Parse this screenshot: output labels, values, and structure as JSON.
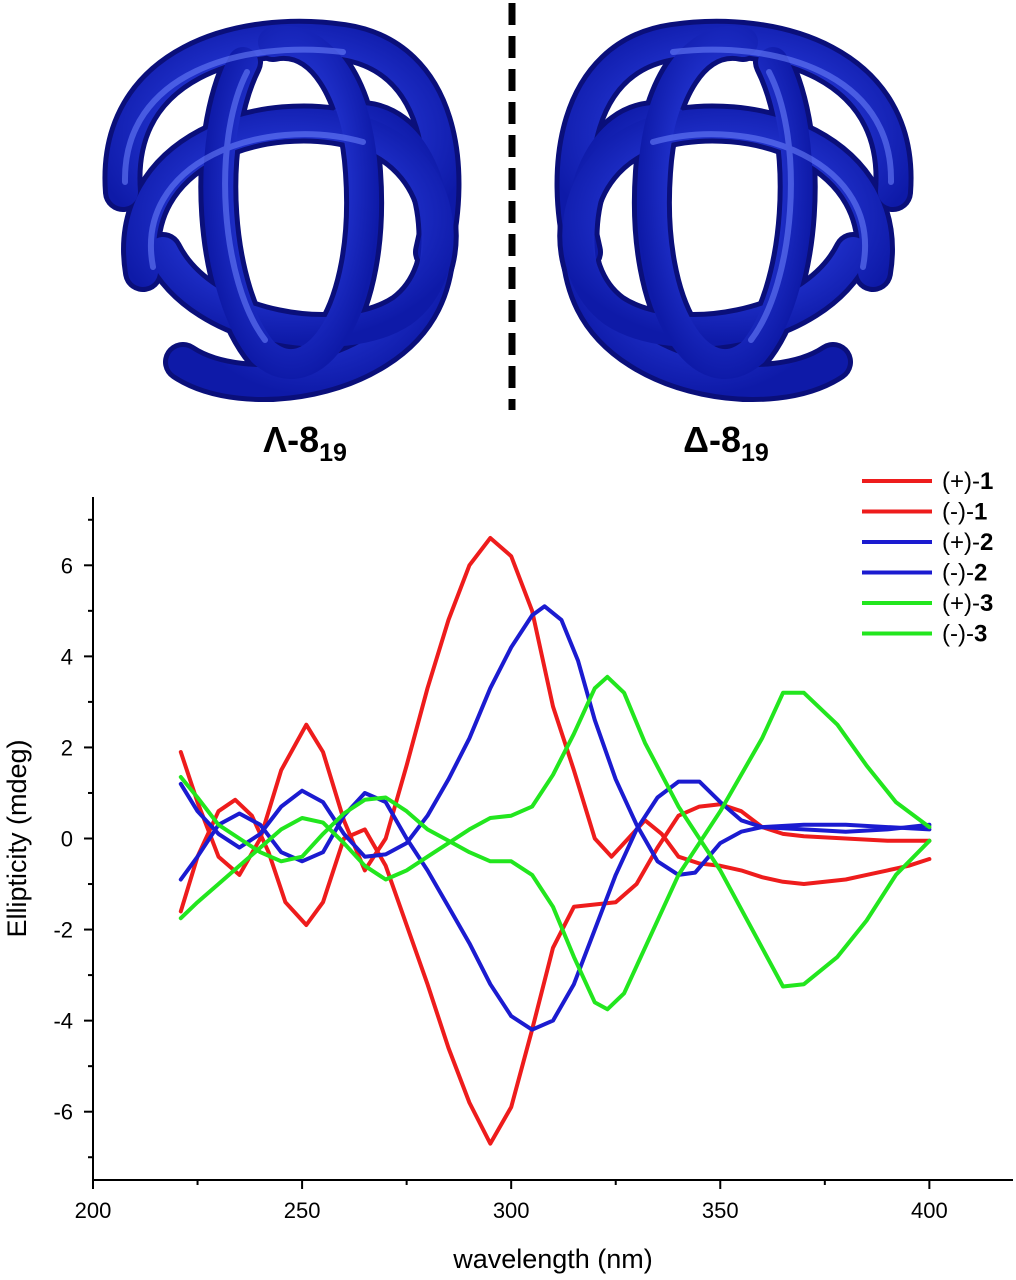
{
  "knots": {
    "left": {
      "prefix": "Λ-8",
      "sub": "19"
    },
    "right": {
      "prefix": "Δ-8",
      "sub": "19"
    },
    "color": "#1f2fd6"
  },
  "chart_data": {
    "type": "line",
    "xlabel": "wavelength (nm)",
    "ylabel": "Ellipticity (mdeg)",
    "xlim": [
      200,
      420
    ],
    "ylim": [
      -7.5,
      7.5
    ],
    "x_ticks": [
      "200",
      "250",
      "300",
      "350",
      "400"
    ],
    "y_ticks": [
      "-6",
      "-4",
      "-2",
      "0",
      "2",
      "4",
      "6"
    ],
    "legend_position": "top-right",
    "series": [
      {
        "name": "(+)-1",
        "label_prefix": "(+)-",
        "label_num": "1",
        "color": "#ee1c1c",
        "points": [
          [
            221,
            1.9
          ],
          [
            225,
            0.8
          ],
          [
            230,
            -0.4
          ],
          [
            235,
            -0.8
          ],
          [
            240,
            0.0
          ],
          [
            245,
            1.5
          ],
          [
            251,
            2.5
          ],
          [
            255,
            1.9
          ],
          [
            260,
            0.4
          ],
          [
            265,
            -0.7
          ],
          [
            270,
            0.0
          ],
          [
            275,
            1.6
          ],
          [
            280,
            3.3
          ],
          [
            285,
            4.8
          ],
          [
            290,
            6.0
          ],
          [
            295,
            6.6
          ],
          [
            300,
            6.2
          ],
          [
            305,
            5.0
          ],
          [
            310,
            2.9
          ],
          [
            315,
            1.5
          ],
          [
            320,
            0.0
          ],
          [
            324,
            -0.4
          ],
          [
            328,
            0.0
          ],
          [
            332,
            0.4
          ],
          [
            336,
            0.1
          ],
          [
            340,
            -0.4
          ],
          [
            345,
            -0.55
          ],
          [
            350,
            -0.6
          ],
          [
            355,
            -0.7
          ],
          [
            360,
            -0.85
          ],
          [
            365,
            -0.95
          ],
          [
            370,
            -1.0
          ],
          [
            375,
            -0.95
          ],
          [
            380,
            -0.9
          ],
          [
            385,
            -0.8
          ],
          [
            390,
            -0.7
          ],
          [
            395,
            -0.6
          ],
          [
            400,
            -0.45
          ]
        ]
      },
      {
        "name": "(-)-1",
        "label_prefix": "(-)-",
        "label_num": "1",
        "color": "#ee1c1c",
        "points": [
          [
            221,
            -1.6
          ],
          [
            225,
            -0.4
          ],
          [
            230,
            0.6
          ],
          [
            234,
            0.85
          ],
          [
            238,
            0.5
          ],
          [
            242,
            -0.3
          ],
          [
            246,
            -1.4
          ],
          [
            251,
            -1.9
          ],
          [
            255,
            -1.4
          ],
          [
            260,
            0.0
          ],
          [
            265,
            0.2
          ],
          [
            270,
            -0.6
          ],
          [
            275,
            -1.9
          ],
          [
            280,
            -3.2
          ],
          [
            285,
            -4.6
          ],
          [
            290,
            -5.8
          ],
          [
            295,
            -6.7
          ],
          [
            300,
            -5.9
          ],
          [
            305,
            -4.2
          ],
          [
            310,
            -2.4
          ],
          [
            315,
            -1.5
          ],
          [
            320,
            -1.45
          ],
          [
            325,
            -1.4
          ],
          [
            330,
            -1.0
          ],
          [
            335,
            -0.2
          ],
          [
            340,
            0.5
          ],
          [
            345,
            0.7
          ],
          [
            350,
            0.75
          ],
          [
            355,
            0.6
          ],
          [
            360,
            0.25
          ],
          [
            365,
            0.1
          ],
          [
            370,
            0.05
          ],
          [
            380,
            0.0
          ],
          [
            390,
            -0.05
          ],
          [
            400,
            -0.05
          ]
        ]
      },
      {
        "name": "(+)-2",
        "label_prefix": "(+)-",
        "label_num": "2",
        "color": "#1b1bd0",
        "points": [
          [
            221,
            1.2
          ],
          [
            225,
            0.6
          ],
          [
            230,
            0.1
          ],
          [
            235,
            -0.2
          ],
          [
            240,
            0.1
          ],
          [
            245,
            0.7
          ],
          [
            250,
            1.05
          ],
          [
            255,
            0.8
          ],
          [
            260,
            0.1
          ],
          [
            265,
            -0.4
          ],
          [
            270,
            -0.35
          ],
          [
            275,
            -0.1
          ],
          [
            280,
            0.5
          ],
          [
            285,
            1.3
          ],
          [
            290,
            2.2
          ],
          [
            295,
            3.3
          ],
          [
            300,
            4.2
          ],
          [
            305,
            4.9
          ],
          [
            308,
            5.1
          ],
          [
            312,
            4.8
          ],
          [
            316,
            3.9
          ],
          [
            320,
            2.6
          ],
          [
            325,
            1.3
          ],
          [
            330,
            0.3
          ],
          [
            335,
            -0.5
          ],
          [
            340,
            -0.8
          ],
          [
            344,
            -0.75
          ],
          [
            350,
            -0.1
          ],
          [
            355,
            0.15
          ],
          [
            360,
            0.25
          ],
          [
            370,
            0.3
          ],
          [
            380,
            0.3
          ],
          [
            390,
            0.25
          ],
          [
            400,
            0.2
          ]
        ]
      },
      {
        "name": "(-)-2",
        "label_prefix": "(-)-",
        "label_num": "2",
        "color": "#1b1bd0",
        "points": [
          [
            221,
            -0.9
          ],
          [
            225,
            -0.4
          ],
          [
            230,
            0.3
          ],
          [
            235,
            0.55
          ],
          [
            240,
            0.3
          ],
          [
            245,
            -0.3
          ],
          [
            250,
            -0.5
          ],
          [
            255,
            -0.3
          ],
          [
            260,
            0.5
          ],
          [
            265,
            1.0
          ],
          [
            270,
            0.8
          ],
          [
            275,
            0.0
          ],
          [
            280,
            -0.7
          ],
          [
            285,
            -1.5
          ],
          [
            290,
            -2.3
          ],
          [
            295,
            -3.2
          ],
          [
            300,
            -3.9
          ],
          [
            305,
            -4.2
          ],
          [
            310,
            -4.0
          ],
          [
            315,
            -3.2
          ],
          [
            320,
            -2.0
          ],
          [
            325,
            -0.8
          ],
          [
            330,
            0.2
          ],
          [
            335,
            0.9
          ],
          [
            340,
            1.25
          ],
          [
            345,
            1.25
          ],
          [
            350,
            0.8
          ],
          [
            355,
            0.4
          ],
          [
            360,
            0.25
          ],
          [
            370,
            0.2
          ],
          [
            380,
            0.15
          ],
          [
            390,
            0.2
          ],
          [
            400,
            0.3
          ]
        ]
      },
      {
        "name": "(+)-3",
        "label_prefix": "(+)-",
        "label_num": "3",
        "color": "#22e61e",
        "points": [
          [
            221,
            1.35
          ],
          [
            225,
            0.9
          ],
          [
            230,
            0.3
          ],
          [
            235,
            0.0
          ],
          [
            240,
            -0.3
          ],
          [
            245,
            -0.5
          ],
          [
            250,
            -0.4
          ],
          [
            255,
            0.1
          ],
          [
            260,
            0.55
          ],
          [
            265,
            0.85
          ],
          [
            270,
            0.9
          ],
          [
            275,
            0.6
          ],
          [
            280,
            0.2
          ],
          [
            285,
            -0.05
          ],
          [
            290,
            -0.3
          ],
          [
            295,
            -0.5
          ],
          [
            300,
            -0.5
          ],
          [
            305,
            -0.8
          ],
          [
            310,
            -1.5
          ],
          [
            315,
            -2.6
          ],
          [
            320,
            -3.6
          ],
          [
            323,
            -3.75
          ],
          [
            327,
            -3.4
          ],
          [
            332,
            -2.4
          ],
          [
            340,
            -0.8
          ],
          [
            350,
            0.6
          ],
          [
            360,
            2.2
          ],
          [
            365,
            3.2
          ],
          [
            370,
            3.2
          ],
          [
            378,
            2.5
          ],
          [
            385,
            1.6
          ],
          [
            392,
            0.8
          ],
          [
            400,
            0.25
          ]
        ]
      },
      {
        "name": "(-)-3",
        "label_prefix": "(-)-",
        "label_num": "3",
        "color": "#22e61e",
        "points": [
          [
            221,
            -1.75
          ],
          [
            225,
            -1.4
          ],
          [
            230,
            -1.0
          ],
          [
            235,
            -0.6
          ],
          [
            240,
            -0.2
          ],
          [
            245,
            0.2
          ],
          [
            250,
            0.45
          ],
          [
            255,
            0.35
          ],
          [
            260,
            -0.1
          ],
          [
            265,
            -0.6
          ],
          [
            270,
            -0.9
          ],
          [
            275,
            -0.7
          ],
          [
            280,
            -0.4
          ],
          [
            285,
            -0.1
          ],
          [
            290,
            0.2
          ],
          [
            295,
            0.45
          ],
          [
            300,
            0.5
          ],
          [
            305,
            0.7
          ],
          [
            310,
            1.4
          ],
          [
            315,
            2.3
          ],
          [
            320,
            3.3
          ],
          [
            323,
            3.55
          ],
          [
            327,
            3.2
          ],
          [
            332,
            2.1
          ],
          [
            340,
            0.7
          ],
          [
            350,
            -0.7
          ],
          [
            360,
            -2.4
          ],
          [
            365,
            -3.25
          ],
          [
            370,
            -3.2
          ],
          [
            378,
            -2.6
          ],
          [
            385,
            -1.8
          ],
          [
            392,
            -0.8
          ],
          [
            400,
            -0.05
          ]
        ]
      }
    ]
  }
}
